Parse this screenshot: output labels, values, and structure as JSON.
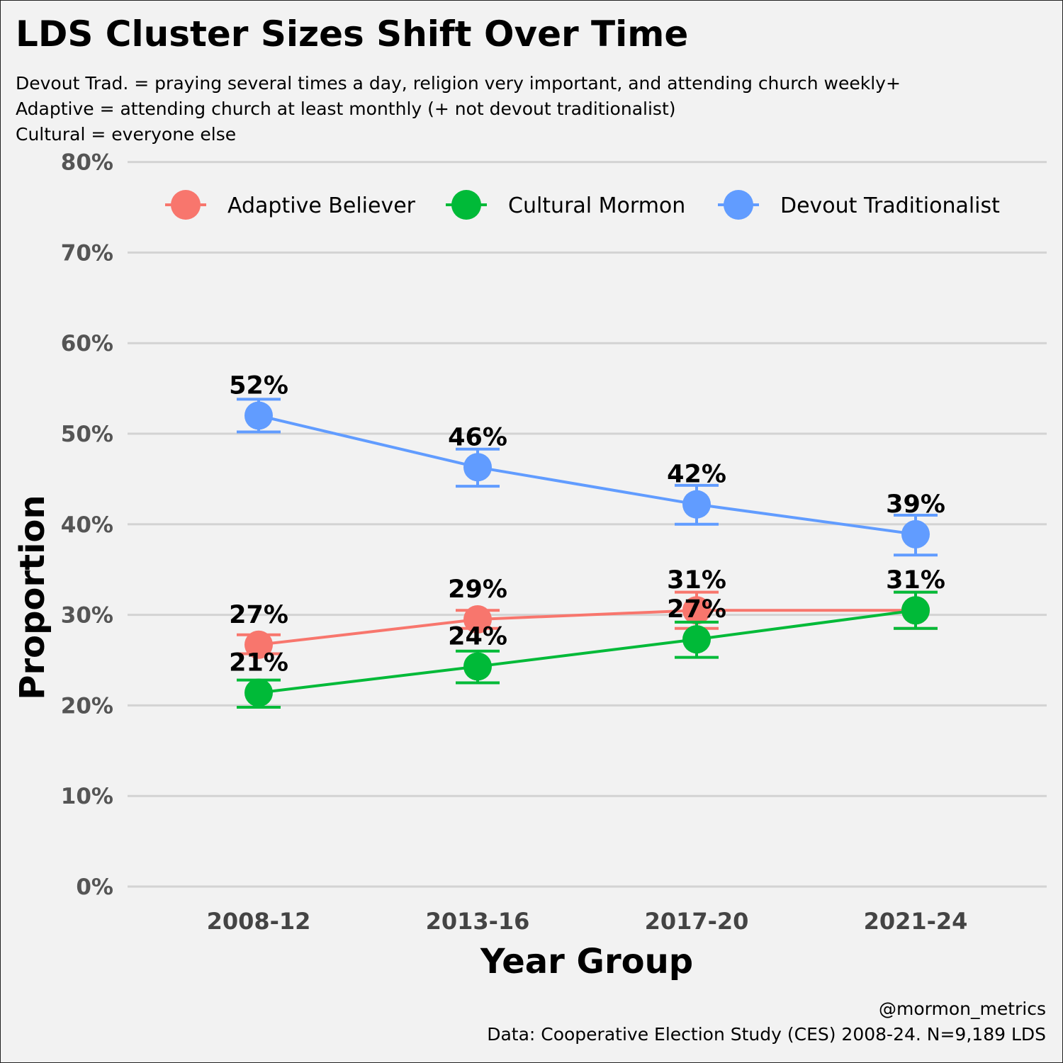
{
  "chart_data": {
    "type": "line",
    "title": "LDS Cluster Sizes Shift Over Time",
    "subtitle": [
      "Devout Trad. = praying several times a day, religion very important, and attending church weekly+",
      "Adaptive = attending church at least monthly (+ not devout traditionalist)",
      "Cultural = everyone else"
    ],
    "xlabel": "Year Group",
    "ylabel": "Proportion",
    "categories": [
      "2008-12",
      "2013-16",
      "2017-20",
      "2021-24"
    ],
    "ylim": [
      0,
      0.8
    ],
    "yticks": [
      0,
      0.1,
      0.2,
      0.3,
      0.4,
      0.5,
      0.6,
      0.7,
      0.8
    ],
    "ytick_labels": [
      "0%",
      "10%",
      "20%",
      "30%",
      "40%",
      "50%",
      "60%",
      "70%",
      "80%"
    ],
    "grid": "horizontal",
    "legend_position": "top",
    "series": [
      {
        "name": "Adaptive Believer",
        "color": "#f8766d",
        "values": [
          0.267,
          0.295,
          0.305,
          0.305
        ],
        "error_low": [
          0.257,
          0.285,
          0.285,
          0.285
        ],
        "error_high": [
          0.278,
          0.305,
          0.325,
          0.325
        ],
        "labels": [
          "27%",
          "29%",
          "31%",
          ""
        ]
      },
      {
        "name": "Cultural Mormon",
        "color": "#00ba38",
        "values": [
          0.214,
          0.243,
          0.273,
          0.305
        ],
        "error_low": [
          0.198,
          0.225,
          0.253,
          0.285
        ],
        "error_high": [
          0.228,
          0.26,
          0.292,
          0.325
        ],
        "labels": [
          "21%",
          "24%",
          "27%",
          "31%"
        ]
      },
      {
        "name": "Devout Traditionalist",
        "color": "#619cff",
        "values": [
          0.52,
          0.463,
          0.422,
          0.389
        ],
        "error_low": [
          0.502,
          0.442,
          0.4,
          0.366
        ],
        "error_high": [
          0.538,
          0.483,
          0.443,
          0.41
        ],
        "labels": [
          "52%",
          "46%",
          "42%",
          "39%"
        ]
      }
    ]
  },
  "caption": {
    "line1": "@mormon_metrics",
    "line2": "Data: Cooperative Election Study (CES) 2008-24. N=9,189 LDS"
  }
}
